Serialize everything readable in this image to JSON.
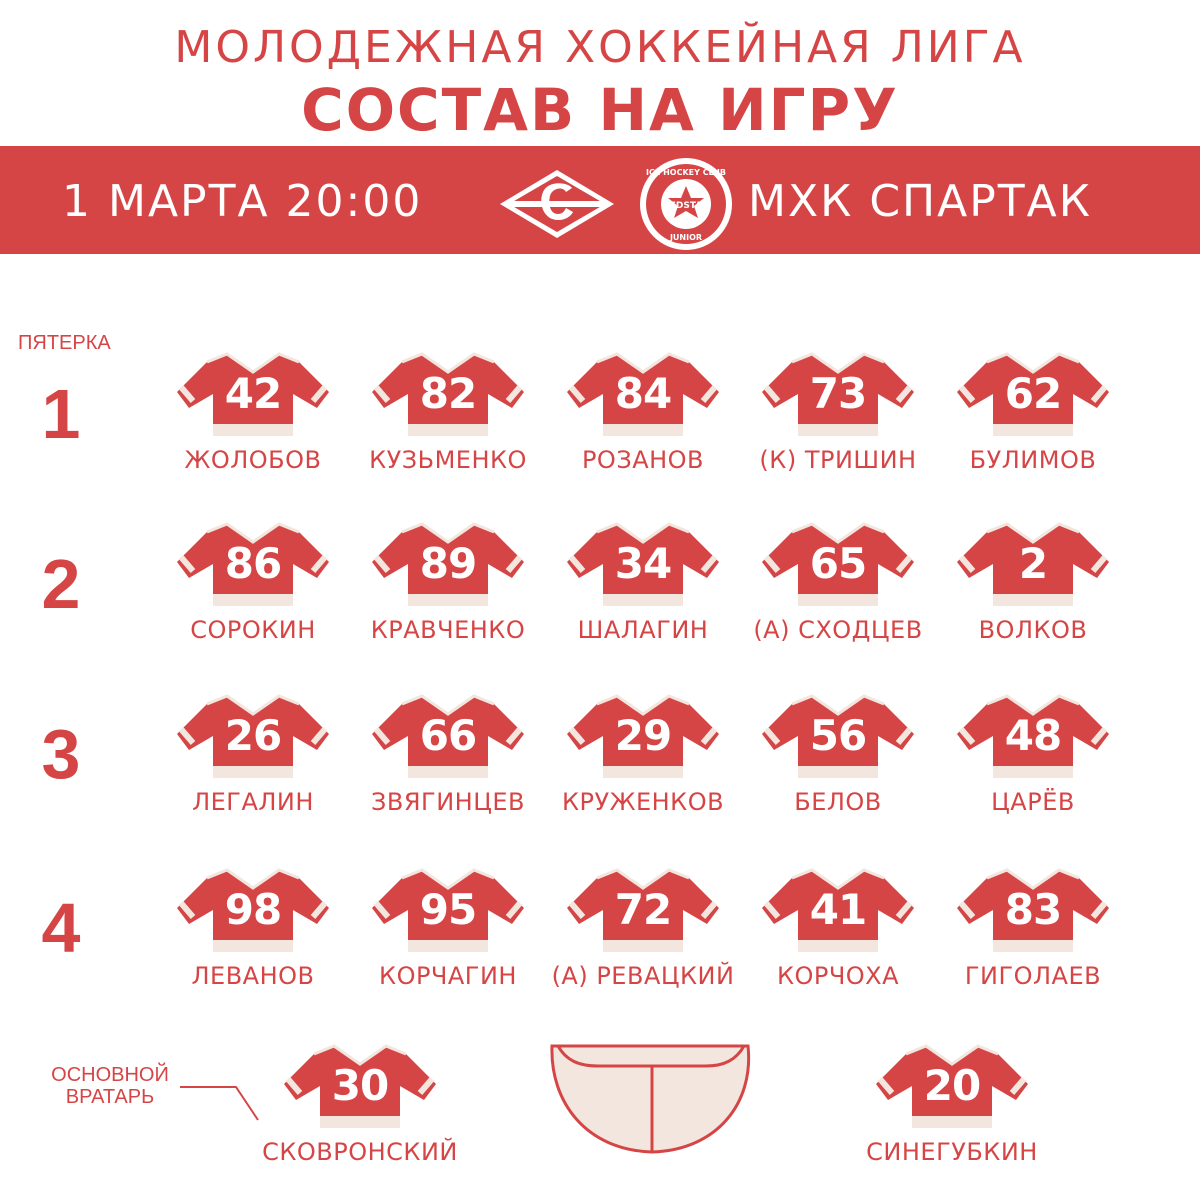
{
  "header": {
    "league": "МОЛОДЕЖНАЯ ХОККЕЙНАЯ ЛИГА",
    "title": "СОСТАВ НА ИГРУ"
  },
  "match": {
    "datetime": "1 МАРТА 20:00",
    "opponent": "МХК СПАРТАК",
    "logo_left": "spartak-logo",
    "logo_right": "redstars-logo",
    "logo_right_text": [
      "ICE HOCKEY CLUB",
      "REDSTAR",
      "JUNIOR"
    ]
  },
  "lines": {
    "caption": "ПЯТЕРКА",
    "items": [
      {
        "label": "1",
        "players": [
          {
            "number": "42",
            "name": "ЖОЛОБОВ"
          },
          {
            "number": "82",
            "name": "КУЗЬМЕНКО"
          },
          {
            "number": "84",
            "name": "РОЗАНОВ"
          },
          {
            "number": "73",
            "name": "(К) ТРИШИН"
          },
          {
            "number": "62",
            "name": "БУЛИМОВ"
          }
        ]
      },
      {
        "label": "2",
        "players": [
          {
            "number": "86",
            "name": "СОРОКИН"
          },
          {
            "number": "89",
            "name": "КРАВЧЕНКО"
          },
          {
            "number": "34",
            "name": "ШАЛАГИН"
          },
          {
            "number": "65",
            "name": "(А) СХОДЦЕВ"
          },
          {
            "number": "2",
            "name": "ВОЛКОВ"
          }
        ]
      },
      {
        "label": "3",
        "players": [
          {
            "number": "26",
            "name": "ЛЕГАЛИН"
          },
          {
            "number": "66",
            "name": "ЗВЯГИНЦЕВ"
          },
          {
            "number": "29",
            "name": "КРУЖЕНКОВ"
          },
          {
            "number": "56",
            "name": "БЕЛОВ"
          },
          {
            "number": "48",
            "name": "ЦАРЁВ"
          }
        ]
      },
      {
        "label": "4",
        "players": [
          {
            "number": "98",
            "name": "ЛЕВАНОВ"
          },
          {
            "number": "95",
            "name": "КОРЧАГИН"
          },
          {
            "number": "72",
            "name": "(А) РЕВАЦКИЙ"
          },
          {
            "number": "41",
            "name": "КОРЧОХА"
          },
          {
            "number": "83",
            "name": "ГИГОЛАЕВ"
          }
        ]
      }
    ]
  },
  "goalies": {
    "caption_line1": "ОСНОВНОЙ",
    "caption_line2": "ВРАТАРЬ",
    "starter": {
      "number": "30",
      "name": "СКОВРОНСКИЙ"
    },
    "backup": {
      "number": "20",
      "name": "СИНЕГУБКИН"
    }
  },
  "colors": {
    "accent": "#d64545",
    "jersey_trim": "#f2e6df",
    "text_light": "#ffffff"
  }
}
